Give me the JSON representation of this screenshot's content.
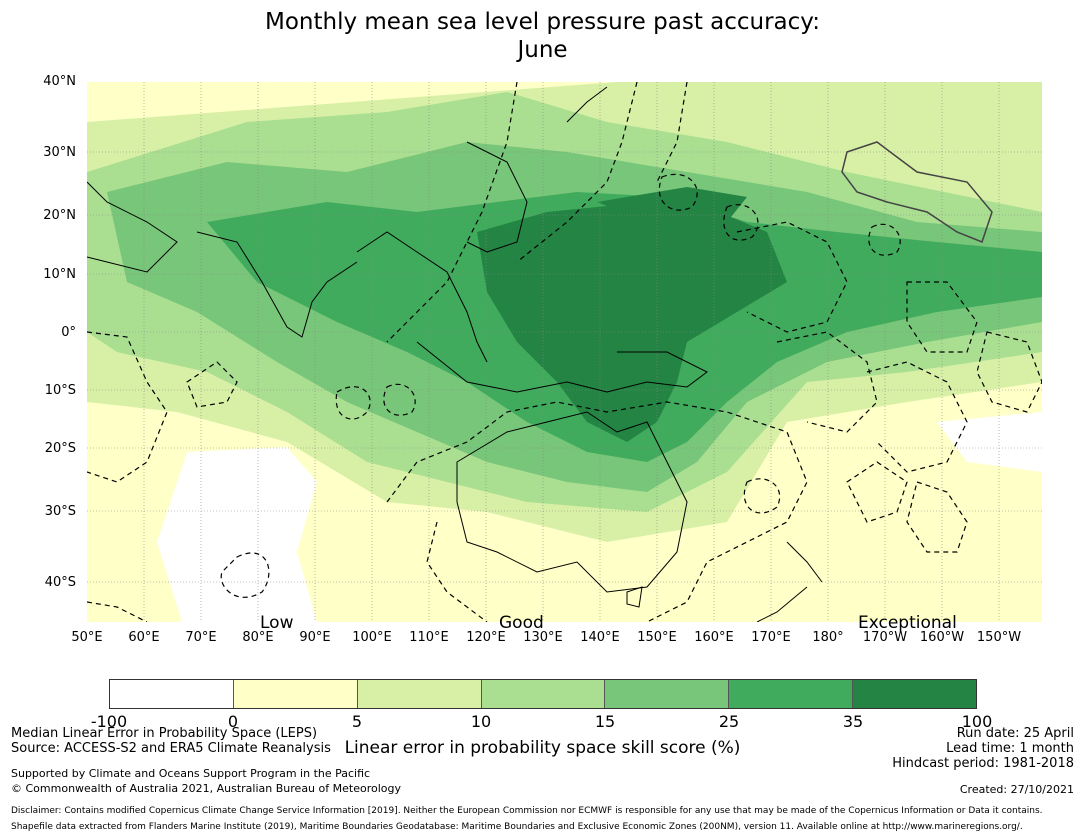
{
  "title": {
    "line1": "Monthly mean sea level pressure past accuracy:",
    "line2": "June"
  },
  "map": {
    "lat_labels": [
      "40°N",
      "30°N",
      "20°N",
      "10°N",
      "0°",
      "10°S",
      "20°S",
      "30°S",
      "40°S"
    ],
    "lon_labels": [
      "50°E",
      "60°E",
      "70°E",
      "80°E",
      "90°E",
      "100°E",
      "110°E",
      "120°E",
      "130°E",
      "140°E",
      "150°E",
      "160°E",
      "170°E",
      "180°",
      "170°W",
      "160°W",
      "150°W"
    ],
    "skill_labels": {
      "low": "Low",
      "good": "Good",
      "exceptional": "Exceptional"
    }
  },
  "colorbar": {
    "ticks": [
      "-100",
      "0",
      "5",
      "10",
      "15",
      "25",
      "35",
      "100"
    ],
    "colors": [
      "#ffffff",
      "#ffffc8",
      "#d8f0a6",
      "#aadf92",
      "#78c679",
      "#41ab5d",
      "#238443"
    ],
    "xlabel": "Linear error in probability space skill score (%)"
  },
  "footer": {
    "method": "Median Linear Error in Probability Space (LEPS)",
    "source": "Source: ACCESS-S2 and ERA5 Climate Reanalysis",
    "support": "Supported by Climate and Oceans Support Program in the Pacific",
    "copyright": "© Commonwealth of Australia 2021, Australian Bureau of Meteorology",
    "run_date": "Run date: 25 April",
    "lead_time": "Lead time: 1 month",
    "hindcast": "Hindcast period: 1981-2018",
    "created": "Created: 27/10/2021",
    "disclaimer": "Disclaimer: Contains modified Copernicus Climate Change Service Information [2019]. Neither the European Commission nor ECMWF is responsible for any use that may be made of the Copernicus Information or Data it contains.",
    "shapefile": "Shapefile data extracted from Flanders Marine Institute (2019), Maritime Boundaries Geodatabase: Maritime Boundaries and Exclusive Economic Zones (200NM), version 11. Available online at http://www.marineregions.org/."
  }
}
